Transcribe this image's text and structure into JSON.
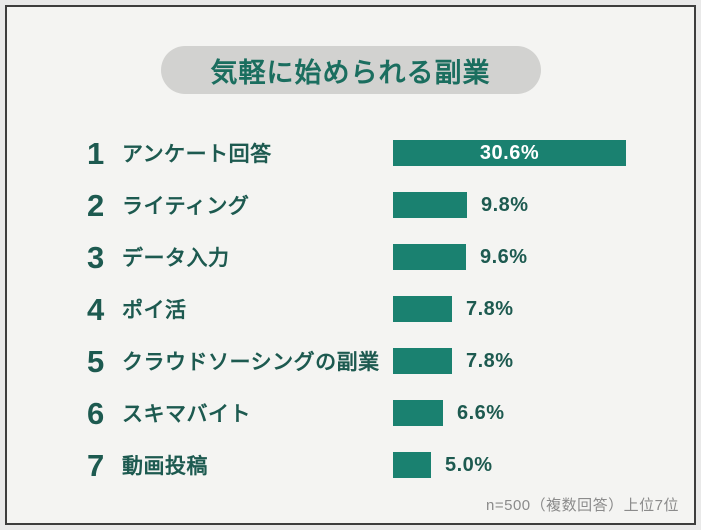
{
  "page": {
    "title": "気軽に始められる副業",
    "footnote": "n=500（複数回答）上位7位"
  },
  "colors": {
    "bar": "#1a8170",
    "text_dark": "#1d5a50",
    "title_text": "#1b6e5f",
    "pill_bg": "#d2d2d0",
    "page_bg": "#f4f4f2",
    "outer_bg": "#e9e9e9",
    "frame_border": "#3d3d3d",
    "footnote_text": "#8b8b8b",
    "bar_value_inside": "#ffffff"
  },
  "chart_data": {
    "type": "bar",
    "orientation": "horizontal",
    "title": "気軽に始められる副業",
    "categories": [
      "アンケート回答",
      "ライティング",
      "データ入力",
      "ポイ活",
      "クラウドソーシングの副業",
      "スキマバイト",
      "動画投稿"
    ],
    "ranks": [
      1,
      2,
      3,
      4,
      5,
      6,
      7
    ],
    "values": [
      30.6,
      9.8,
      9.6,
      7.8,
      7.8,
      6.6,
      5.0
    ],
    "value_labels": [
      "30.6%",
      "9.8%",
      "9.6%",
      "7.8%",
      "7.8%",
      "6.6%",
      "5.0%"
    ],
    "xlim": [
      0,
      32
    ],
    "grid": false,
    "legend": false,
    "annotation": "n=500（複数回答）上位7位"
  }
}
